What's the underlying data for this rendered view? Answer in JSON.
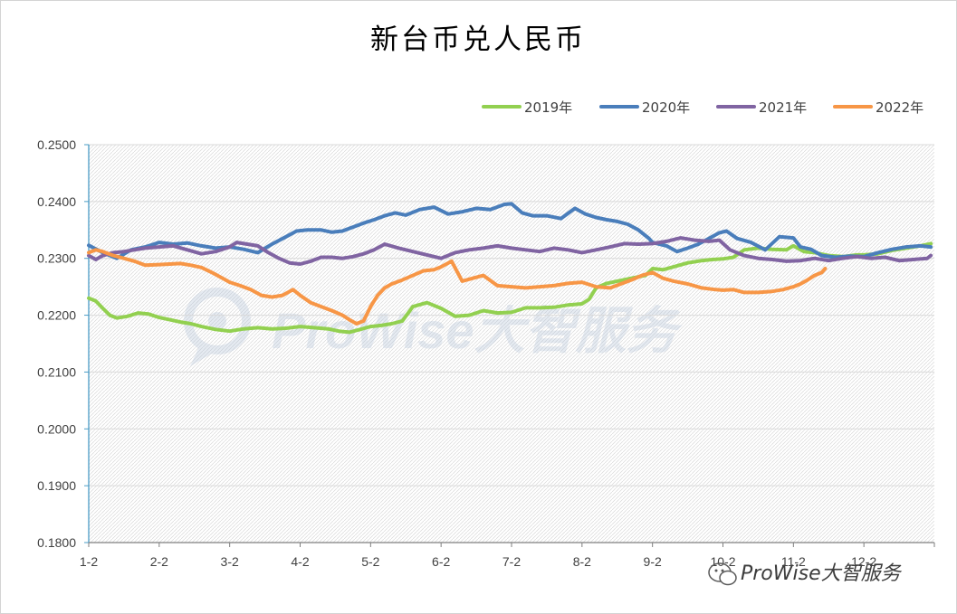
{
  "chart_data": {
    "type": "line",
    "title": "新台币兑人民币",
    "ylim": [
      0.18,
      0.25
    ],
    "y_ticks": [
      "0.2500",
      "0.2400",
      "0.2300",
      "0.2200",
      "0.2100",
      "0.2000",
      "0.1900",
      "0.1800"
    ],
    "y_tick_values": [
      0.25,
      0.24,
      0.23,
      0.22,
      0.21,
      0.2,
      0.19,
      0.18
    ],
    "categories": [
      "1-2",
      "2-2",
      "3-2",
      "4-2",
      "5-2",
      "6-2",
      "7-2",
      "8-2",
      "9-2",
      "10-2",
      "11-2",
      "12-2"
    ],
    "grid": "horizontal",
    "legend_position": "top-right",
    "series": [
      {
        "name": "2019年",
        "color": "#92d050",
        "x": [
          1.0,
          1.1,
          1.2,
          1.3,
          1.4,
          1.55,
          1.7,
          1.85,
          2.0,
          2.15,
          2.3,
          2.45,
          2.6,
          2.8,
          3.0,
          3.2,
          3.4,
          3.6,
          3.8,
          4.0,
          4.2,
          4.4,
          4.55,
          4.7,
          4.85,
          5.0,
          5.15,
          5.3,
          5.45,
          5.6,
          5.8,
          6.0,
          6.2,
          6.4,
          6.6,
          6.8,
          7.0,
          7.2,
          7.4,
          7.6,
          7.8,
          8.0,
          8.1,
          8.2,
          8.35,
          8.5,
          8.7,
          8.9,
          9.0,
          9.15,
          9.3,
          9.5,
          9.7,
          9.85,
          10.0,
          10.15,
          10.3,
          10.5,
          10.7,
          10.9,
          11.0,
          11.15,
          11.3,
          11.5,
          11.7,
          11.9,
          12.0,
          12.2,
          12.4,
          12.6,
          12.8,
          12.95
        ],
        "values": [
          0.223,
          0.2225,
          0.2212,
          0.22,
          0.2195,
          0.2198,
          0.2204,
          0.2202,
          0.2196,
          0.2192,
          0.2188,
          0.2185,
          0.218,
          0.2175,
          0.2172,
          0.2176,
          0.2178,
          0.2176,
          0.2177,
          0.218,
          0.2178,
          0.2176,
          0.2172,
          0.217,
          0.2175,
          0.218,
          0.2182,
          0.2185,
          0.219,
          0.2215,
          0.2222,
          0.2212,
          0.2198,
          0.22,
          0.2208,
          0.2204,
          0.2205,
          0.2213,
          0.2213,
          0.2214,
          0.2218,
          0.222,
          0.2228,
          0.2248,
          0.2256,
          0.226,
          0.2265,
          0.227,
          0.2282,
          0.228,
          0.2285,
          0.2292,
          0.2296,
          0.2298,
          0.2299,
          0.2302,
          0.2315,
          0.2318,
          0.2316,
          0.2315,
          0.2322,
          0.2312,
          0.231,
          0.2305,
          0.2303,
          0.2306,
          0.2306,
          0.2308,
          0.2314,
          0.2318,
          0.2322,
          0.2326
        ]
      },
      {
        "name": "2020年",
        "color": "#4a7ebb",
        "x": [
          1.0,
          1.2,
          1.4,
          1.6,
          1.8,
          2.0,
          2.2,
          2.4,
          2.6,
          2.8,
          3.0,
          3.2,
          3.4,
          3.6,
          3.8,
          3.95,
          4.1,
          4.3,
          4.45,
          4.6,
          4.75,
          4.9,
          5.05,
          5.2,
          5.35,
          5.5,
          5.7,
          5.9,
          6.1,
          6.3,
          6.5,
          6.7,
          6.9,
          7.0,
          7.15,
          7.3,
          7.5,
          7.7,
          7.9,
          8.05,
          8.2,
          8.35,
          8.5,
          8.65,
          8.8,
          8.95,
          9.0,
          9.1,
          9.2,
          9.35,
          9.5,
          9.65,
          9.8,
          9.95,
          10.05,
          10.2,
          10.4,
          10.6,
          10.8,
          11.0,
          11.1,
          11.25,
          11.4,
          11.6,
          11.8,
          12.0,
          12.2,
          12.4,
          12.6,
          12.8,
          12.95
        ],
        "values": [
          0.2323,
          0.231,
          0.23,
          0.2315,
          0.232,
          0.2328,
          0.2325,
          0.2327,
          0.2322,
          0.2318,
          0.232,
          0.2316,
          0.231,
          0.2325,
          0.2338,
          0.2348,
          0.235,
          0.235,
          0.2346,
          0.2348,
          0.2355,
          0.2362,
          0.2368,
          0.2375,
          0.238,
          0.2376,
          0.2386,
          0.239,
          0.2378,
          0.2382,
          0.2388,
          0.2386,
          0.2395,
          0.2396,
          0.238,
          0.2375,
          0.2375,
          0.237,
          0.2388,
          0.2378,
          0.2372,
          0.2368,
          0.2365,
          0.236,
          0.235,
          0.2335,
          0.2328,
          0.2325,
          0.2322,
          0.2312,
          0.2318,
          0.2325,
          0.2335,
          0.2345,
          0.2348,
          0.2335,
          0.2328,
          0.2315,
          0.2338,
          0.2336,
          0.232,
          0.2316,
          0.2305,
          0.2302,
          0.2304,
          0.2303,
          0.231,
          0.2316,
          0.232,
          0.2322,
          0.232
        ]
      },
      {
        "name": "2021年",
        "color": "#8064a2",
        "x": [
          1.0,
          1.1,
          1.2,
          1.35,
          1.5,
          1.65,
          1.8,
          2.0,
          2.2,
          2.4,
          2.6,
          2.8,
          3.0,
          3.1,
          3.25,
          3.4,
          3.55,
          3.7,
          3.85,
          4.0,
          4.15,
          4.3,
          4.45,
          4.6,
          4.75,
          4.9,
          5.05,
          5.2,
          5.4,
          5.6,
          5.8,
          6.0,
          6.2,
          6.4,
          6.6,
          6.8,
          7.0,
          7.2,
          7.4,
          7.6,
          7.8,
          8.0,
          8.2,
          8.4,
          8.6,
          8.8,
          9.0,
          9.2,
          9.4,
          9.6,
          9.8,
          9.95,
          10.1,
          10.3,
          10.5,
          10.7,
          10.9,
          11.1,
          11.3,
          11.5,
          11.7,
          11.9,
          12.1,
          12.3,
          12.5,
          12.7,
          12.9,
          12.95
        ],
        "values": [
          0.2305,
          0.2298,
          0.2305,
          0.231,
          0.2312,
          0.2315,
          0.2318,
          0.232,
          0.2322,
          0.2315,
          0.2308,
          0.2312,
          0.232,
          0.2328,
          0.2325,
          0.2322,
          0.231,
          0.23,
          0.2292,
          0.229,
          0.2295,
          0.2302,
          0.2302,
          0.23,
          0.2303,
          0.2308,
          0.2315,
          0.2325,
          0.2318,
          0.2312,
          0.2306,
          0.23,
          0.231,
          0.2315,
          0.2318,
          0.2322,
          0.2318,
          0.2315,
          0.2312,
          0.2318,
          0.2315,
          0.231,
          0.2315,
          0.232,
          0.2326,
          0.2325,
          0.2326,
          0.233,
          0.2336,
          0.2332,
          0.233,
          0.2332,
          0.2315,
          0.2305,
          0.23,
          0.2298,
          0.2295,
          0.2296,
          0.23,
          0.2296,
          0.23,
          0.2303,
          0.23,
          0.2302,
          0.2296,
          0.2298,
          0.23,
          0.2305
        ]
      },
      {
        "name": "2022年",
        "color": "#f79646",
        "x": [
          1.0,
          1.1,
          1.2,
          1.35,
          1.5,
          1.65,
          1.8,
          2.0,
          2.15,
          2.3,
          2.45,
          2.6,
          2.75,
          2.9,
          3.0,
          3.15,
          3.3,
          3.45,
          3.6,
          3.75,
          3.9,
          4.0,
          4.15,
          4.3,
          4.45,
          4.6,
          4.7,
          4.8,
          4.9,
          5.0,
          5.1,
          5.2,
          5.3,
          5.45,
          5.6,
          5.75,
          5.9,
          6.0,
          6.15,
          6.3,
          6.45,
          6.6,
          6.8,
          7.0,
          7.2,
          7.4,
          7.6,
          7.8,
          8.0,
          8.2,
          8.4,
          8.55,
          8.7,
          8.85,
          9.0,
          9.15,
          9.3,
          9.5,
          9.7,
          9.9,
          10.0,
          10.15,
          10.3,
          10.5,
          10.7,
          10.85,
          11.0,
          11.1,
          11.2,
          11.3,
          11.4,
          11.45
        ],
        "values": [
          0.231,
          0.2315,
          0.2312,
          0.2305,
          0.23,
          0.2295,
          0.2288,
          0.2289,
          0.229,
          0.2291,
          0.2288,
          0.2284,
          0.2275,
          0.2265,
          0.2258,
          0.2252,
          0.2245,
          0.2235,
          0.2232,
          0.2235,
          0.2245,
          0.2235,
          0.2222,
          0.2215,
          0.2208,
          0.22,
          0.2192,
          0.2185,
          0.219,
          0.2215,
          0.2235,
          0.2248,
          0.2255,
          0.2262,
          0.227,
          0.2278,
          0.228,
          0.2285,
          0.2295,
          0.226,
          0.2265,
          0.227,
          0.2252,
          0.225,
          0.2248,
          0.225,
          0.2252,
          0.2256,
          0.2258,
          0.225,
          0.2248,
          0.2255,
          0.2262,
          0.227,
          0.2275,
          0.2265,
          0.226,
          0.2255,
          0.2248,
          0.2245,
          0.2244,
          0.2245,
          0.224,
          0.224,
          0.2242,
          0.2245,
          0.225,
          0.2255,
          0.2262,
          0.227,
          0.2275,
          0.2282
        ]
      }
    ]
  },
  "watermark": {
    "main": "ProWise大智服务",
    "corner": "ProWise大智服务",
    "corner_icon": "wechat-icon"
  }
}
